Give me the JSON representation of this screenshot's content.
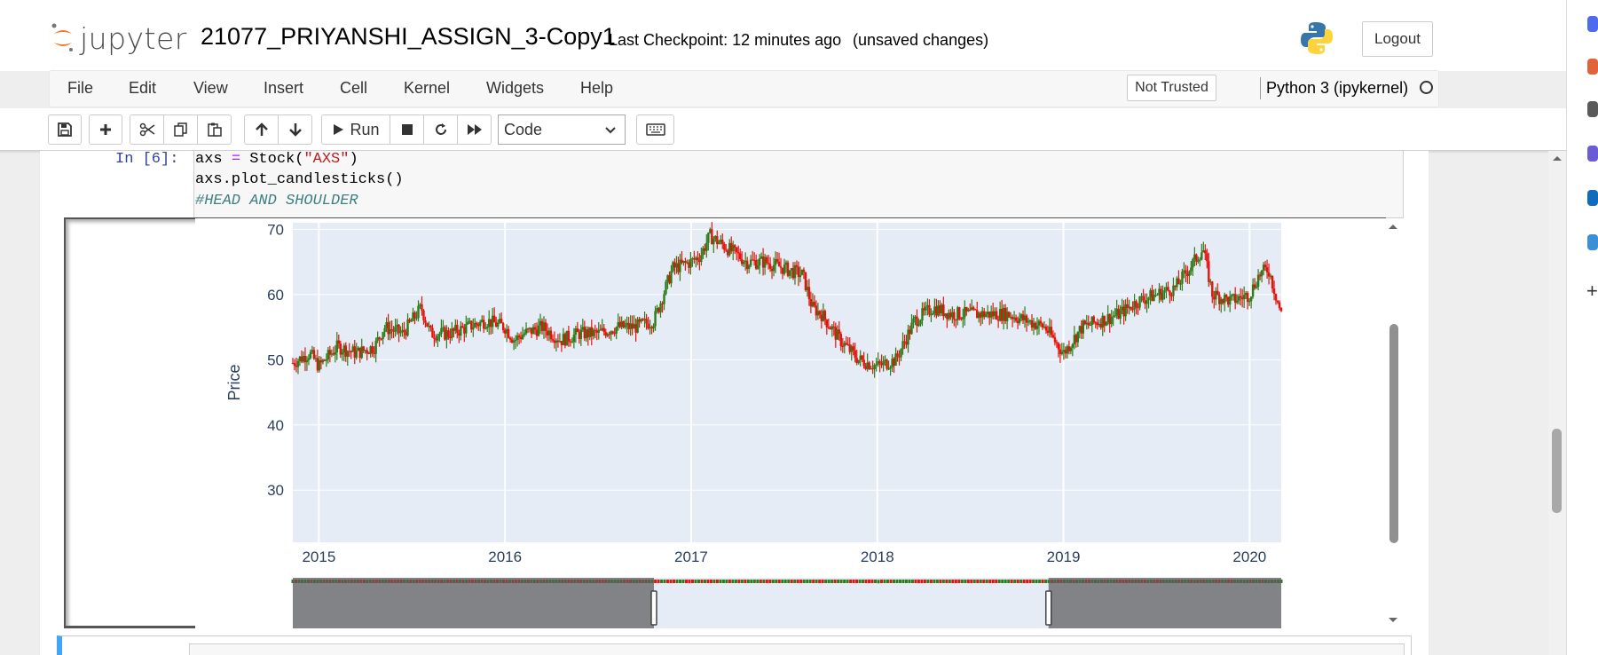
{
  "header": {
    "logo_text": "jupyter",
    "notebook_title": "21077_PRIYANSHI_ASSIGN_3-Copy1",
    "checkpoint": "Last Checkpoint: 12 minutes ago",
    "unsaved": "(unsaved changes)",
    "logout_label": "Logout"
  },
  "menubar": {
    "items": [
      "File",
      "Edit",
      "View",
      "Insert",
      "Cell",
      "Kernel",
      "Widgets",
      "Help"
    ],
    "trust_label": "Not Trusted",
    "kernel_name": "Python 3 (ipykernel)"
  },
  "toolbar": {
    "run_label": "Run",
    "cell_type": "Code",
    "icons": [
      "save-icon",
      "plus-icon",
      "cut-icon",
      "copy-icon",
      "paste-icon",
      "arrow-up-icon",
      "arrow-down-icon",
      "run-icon",
      "stop-icon",
      "restart-icon",
      "fast-forward-icon",
      "keyboard-icon"
    ]
  },
  "cell": {
    "prompt": "In [6]:",
    "code_line1_a": "axs ",
    "code_line1_op": "=",
    "code_line1_b": " Stock(",
    "code_line1_str": "\"AXS\"",
    "code_line1_c": ")",
    "code_line2": "axs.plot_candlesticks()",
    "code_line3": "#HEAD AND SHOULDER"
  },
  "chart_data": {
    "type": "line",
    "ylabel": "Price",
    "xlabel": "",
    "title": "",
    "x_ticks": [
      "2015",
      "2016",
      "2017",
      "2018",
      "2019",
      "2020"
    ],
    "y_ticks": [
      30,
      40,
      50,
      60,
      70
    ],
    "ylim": [
      22,
      71
    ],
    "xlim": [
      2014.86,
      2020.17
    ],
    "range_selector": [
      2016.8,
      2018.92
    ],
    "colors": {
      "increasing": "#2b7d1a",
      "decreasing": "#e8120c",
      "plot_bg": "#e5ecf6",
      "grid": "#ffffff"
    },
    "series": [
      {
        "x": [
          2014.86,
          2014.95,
          2015.0,
          2015.1,
          2015.2,
          2015.3,
          2015.35,
          2015.45,
          2015.55,
          2015.6,
          2015.7,
          2015.8,
          2015.9,
          2016.0,
          2016.05,
          2016.1,
          2016.2,
          2016.3,
          2016.4,
          2016.5,
          2016.6,
          2016.7,
          2016.8,
          2016.9,
          2017.0,
          2017.05,
          2017.1,
          2017.15,
          2017.3,
          2017.4,
          2017.5,
          2017.6,
          2017.65,
          2017.7,
          2017.8,
          2017.9,
          2018.0,
          2018.1,
          2018.2,
          2018.3,
          2018.4,
          2018.5,
          2018.6,
          2018.7,
          2018.8,
          2018.9,
          2019.0,
          2019.1,
          2019.2,
          2019.3,
          2019.4,
          2019.5,
          2019.6,
          2019.7,
          2019.75,
          2019.8,
          2019.9,
          2020.0,
          2020.05,
          2020.1,
          2020.17
        ],
        "values": [
          49.5,
          51,
          49,
          52,
          51,
          52,
          55,
          54,
          58,
          54,
          54,
          55,
          56,
          55,
          53,
          54,
          55,
          53,
          54,
          54,
          55,
          55,
          56,
          64,
          65,
          66,
          69,
          68,
          65,
          65,
          64,
          63,
          58,
          57,
          53,
          50,
          49,
          50,
          56,
          58,
          57,
          57,
          57,
          57,
          56,
          55,
          51,
          55,
          56,
          57,
          59,
          60,
          61,
          65,
          67,
          60,
          59,
          60,
          63,
          64,
          57
        ]
      }
    ]
  }
}
